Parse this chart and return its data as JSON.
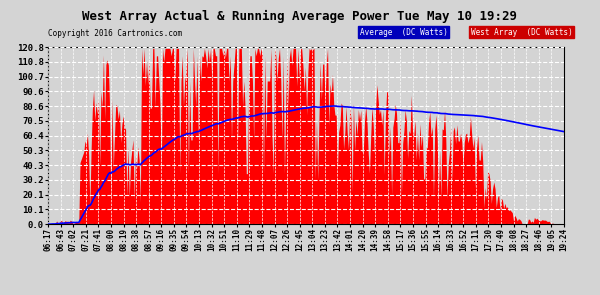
{
  "title": "West Array Actual & Running Average Power Tue May 10 19:29",
  "copyright": "Copyright 2016 Cartronics.com",
  "legend_avg": "Average  (DC Watts)",
  "legend_west": "West Array  (DC Watts)",
  "ymax": 120.8,
  "ymin": 0.0,
  "yticks": [
    0.0,
    10.1,
    20.1,
    30.2,
    40.3,
    50.3,
    60.4,
    70.5,
    80.6,
    90.6,
    100.7,
    110.8,
    120.8
  ],
  "bg_color": "#d4d4d4",
  "plot_bg_color": "#d4d4d4",
  "fill_color": "#ff0000",
  "avg_line_color": "#0000ff",
  "grid_color": "#ffffff",
  "x_labels": [
    "06:17",
    "06:43",
    "07:02",
    "07:21",
    "07:41",
    "08:00",
    "08:19",
    "08:38",
    "08:57",
    "09:16",
    "09:35",
    "09:54",
    "10:13",
    "10:32",
    "10:51",
    "11:10",
    "11:29",
    "11:48",
    "12:07",
    "12:26",
    "12:45",
    "13:04",
    "13:23",
    "13:42",
    "14:01",
    "14:20",
    "14:39",
    "14:58",
    "15:17",
    "15:36",
    "15:55",
    "16:14",
    "16:33",
    "16:52",
    "17:11",
    "17:30",
    "17:49",
    "18:08",
    "18:27",
    "18:46",
    "19:05",
    "19:24"
  ]
}
